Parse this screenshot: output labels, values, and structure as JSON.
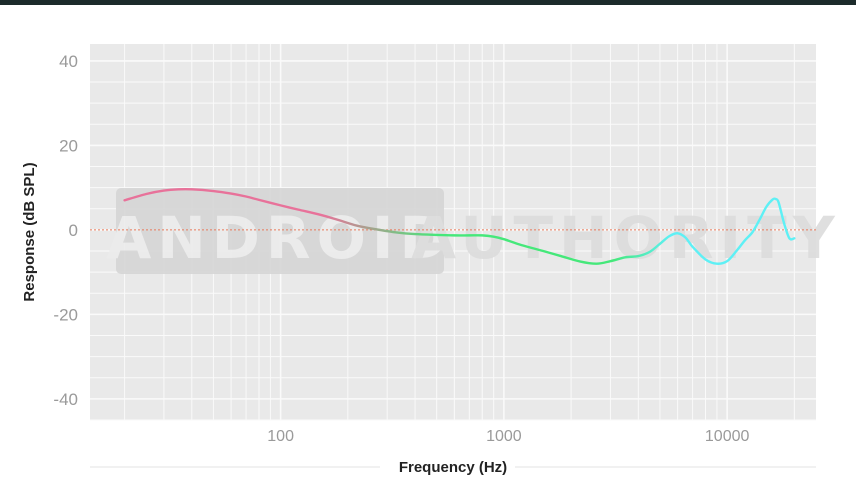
{
  "chart_data": {
    "type": "line",
    "xlabel": "Frequency (Hz)",
    "ylabel": "Response (dB SPL)",
    "xscale": "log",
    "xlim": [
      14,
      25000
    ],
    "ylim": [
      -45,
      44
    ],
    "xticks": [
      {
        "value": 100,
        "label": "100"
      },
      {
        "value": 1000,
        "label": "1000"
      },
      {
        "value": 10000,
        "label": "10000"
      }
    ],
    "yticks": [
      {
        "value": 40,
        "label": "40"
      },
      {
        "value": 20,
        "label": "20"
      },
      {
        "value": 0,
        "label": "0"
      },
      {
        "value": -20,
        "label": "-20"
      },
      {
        "value": -40,
        "label": "-40"
      }
    ],
    "grid": true,
    "reference_line": 0,
    "series": [
      {
        "x": [
          20,
          25,
          30,
          35,
          40,
          50,
          60,
          70,
          80,
          100,
          120,
          150,
          180,
          220,
          270,
          330,
          400,
          500,
          600,
          700,
          800,
          900,
          1000,
          1200,
          1500,
          1800,
          2200,
          2600,
          3000,
          3500,
          4000,
          4500,
          5000,
          5500,
          6000,
          6500,
          7000,
          8000,
          9000,
          10000,
          11000,
          12000,
          13000,
          14000,
          15000,
          16000,
          16500,
          17000,
          18000,
          19000,
          20000
        ],
        "y": [
          7,
          8.5,
          9.3,
          9.6,
          9.6,
          9.2,
          8.6,
          7.9,
          7.1,
          5.8,
          4.8,
          3.6,
          2.4,
          1.0,
          0.1,
          -0.6,
          -1.0,
          -1.2,
          -1.3,
          -1.3,
          -1.3,
          -1.6,
          -2.2,
          -3.6,
          -5.0,
          -6.2,
          -7.5,
          -8.0,
          -7.4,
          -6.5,
          -6.2,
          -5.2,
          -3.3,
          -1.5,
          -0.8,
          -1.8,
          -4.0,
          -7.0,
          -8.0,
          -7.4,
          -5.0,
          -2.5,
          -0.5,
          2.5,
          5.5,
          7.2,
          7.3,
          6.5,
          1.5,
          -2.0,
          -2.0
        ]
      }
    ],
    "colors": {
      "bass": "#e8729a",
      "mid": "#45e87a",
      "treble": "#5ef0f5",
      "reference": "#e8795a",
      "plot_background": "#e9e9e9",
      "grid": "#fafafa",
      "tick_labels": "#9a9a9a",
      "axis_title": "#222222"
    },
    "watermark": {
      "word1": "ANDROID",
      "word2": "AUTHORITY"
    }
  }
}
